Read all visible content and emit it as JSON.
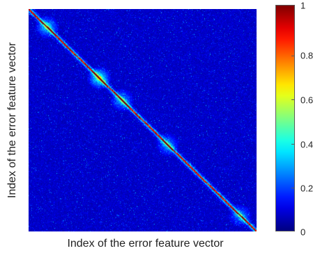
{
  "chart_data": {
    "type": "heatmap",
    "title": "",
    "xlabel": "Index of the error feature vector",
    "ylabel": "Index of the error feature vector",
    "color_range": [
      0,
      1
    ],
    "colormap": "jet",
    "colorbar": {
      "ticks": [
        "0",
        "0.2",
        "0.4",
        "0.6",
        "0.8",
        "1"
      ],
      "values": [
        0,
        0.2,
        0.4,
        0.6,
        0.8,
        1
      ]
    },
    "matrix_summary": {
      "diagonal": "high values near 1",
      "background": "mostly low values with scattered noise",
      "highlight_regions": [
        {
          "row": 0.08,
          "col": 0.08,
          "intensity": 0.35
        },
        {
          "row": 0.31,
          "col": 0.31,
          "intensity": 0.45
        },
        {
          "row": 0.41,
          "col": 0.41,
          "intensity": 0.3
        },
        {
          "row": 0.61,
          "col": 0.61,
          "intensity": 0.28
        },
        {
          "row": 0.93,
          "col": 0.93,
          "intensity": 0.25
        }
      ]
    }
  }
}
